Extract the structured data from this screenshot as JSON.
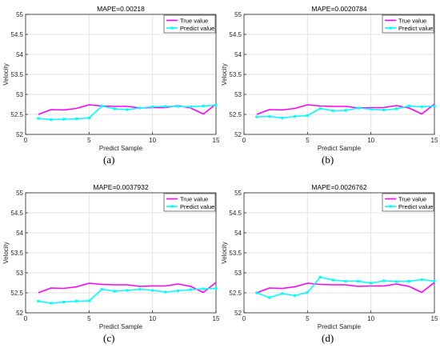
{
  "figure": {
    "panels": [
      {
        "label": "(a)"
      },
      {
        "label": "(b)"
      },
      {
        "label": "(c)"
      },
      {
        "label": "(d)"
      }
    ]
  },
  "colors": {
    "true_series": "#ff00ff",
    "predict_series": "#00ffff",
    "grid": "#e3e3e3",
    "axes": "#262626"
  },
  "chart_data": [
    {
      "type": "line",
      "title": "MAPE=0.00218",
      "xlabel": "Predict Sample",
      "ylabel": "Velocity",
      "xlim": [
        0,
        15
      ],
      "ylim": [
        52,
        55
      ],
      "xticks": [
        0,
        5,
        10,
        15
      ],
      "yticks": [
        52,
        52.5,
        53,
        53.5,
        54,
        54.5,
        55
      ],
      "ytick_labels": [
        "52",
        "52.5",
        "53",
        "53.5",
        "54",
        "54.5",
        "55"
      ],
      "grid": true,
      "legend_position": "top-right",
      "x": [
        1,
        2,
        3,
        4,
        5,
        6,
        7,
        8,
        9,
        10,
        11,
        12,
        13,
        14,
        15
      ],
      "series": [
        {
          "name": "True value",
          "marker": "none",
          "values": [
            52.5,
            52.62,
            52.61,
            52.65,
            52.74,
            52.71,
            52.7,
            52.7,
            52.66,
            52.67,
            52.67,
            52.72,
            52.66,
            52.51,
            52.76
          ]
        },
        {
          "name": "Predict value",
          "marker": "dot",
          "values": [
            52.4,
            52.37,
            52.38,
            52.39,
            52.41,
            52.71,
            52.64,
            52.62,
            52.66,
            52.69,
            52.7,
            52.7,
            52.69,
            52.71,
            52.73
          ]
        }
      ]
    },
    {
      "type": "line",
      "title": "MAPE=0.0020784",
      "xlabel": "Predict Sample",
      "ylabel": "Velocity",
      "xlim": [
        0,
        15
      ],
      "ylim": [
        52,
        55
      ],
      "xticks": [
        0,
        5,
        10,
        15
      ],
      "yticks": [
        52,
        52.5,
        53,
        53.5,
        54,
        54.5,
        55
      ],
      "ytick_labels": [
        "52",
        "52.5",
        "53",
        "53.5",
        "54",
        "54.5",
        "55"
      ],
      "grid": true,
      "legend_position": "top-right",
      "x": [
        1,
        2,
        3,
        4,
        5,
        6,
        7,
        8,
        9,
        10,
        11,
        12,
        13,
        14,
        15
      ],
      "series": [
        {
          "name": "True value",
          "marker": "none",
          "values": [
            52.5,
            52.62,
            52.61,
            52.65,
            52.74,
            52.71,
            52.7,
            52.7,
            52.66,
            52.67,
            52.67,
            52.72,
            52.66,
            52.51,
            52.76
          ]
        },
        {
          "name": "Predict value",
          "marker": "dot",
          "values": [
            52.44,
            52.45,
            52.41,
            52.45,
            52.47,
            52.65,
            52.59,
            52.6,
            52.66,
            52.63,
            52.61,
            52.64,
            52.71,
            52.69,
            52.71
          ]
        }
      ]
    },
    {
      "type": "line",
      "title": "MAPE=0.0037932",
      "xlabel": "Predict Sample",
      "ylabel": "Velocity",
      "xlim": [
        0,
        15
      ],
      "ylim": [
        52,
        55
      ],
      "xticks": [
        0,
        5,
        10,
        15
      ],
      "yticks": [
        52,
        52.5,
        53,
        53.5,
        54,
        54.5,
        55
      ],
      "ytick_labels": [
        "52",
        "52.5",
        "53",
        "53.5",
        "54",
        "54.5",
        "55"
      ],
      "grid": true,
      "legend_position": "top-right",
      "x": [
        1,
        2,
        3,
        4,
        5,
        6,
        7,
        8,
        9,
        10,
        11,
        12,
        13,
        14,
        15
      ],
      "series": [
        {
          "name": "True value",
          "marker": "none",
          "values": [
            52.5,
            52.62,
            52.61,
            52.65,
            52.74,
            52.71,
            52.7,
            52.7,
            52.66,
            52.67,
            52.67,
            52.72,
            52.66,
            52.51,
            52.76
          ]
        },
        {
          "name": "Predict value",
          "marker": "dot",
          "values": [
            52.29,
            52.24,
            52.27,
            52.29,
            52.3,
            52.59,
            52.54,
            52.56,
            52.59,
            52.56,
            52.52,
            52.55,
            52.58,
            52.6,
            52.61
          ]
        }
      ]
    },
    {
      "type": "line",
      "title": "MAPE=0.0026762",
      "xlabel": "Predict Sample",
      "ylabel": "Velocity",
      "xlim": [
        0,
        15
      ],
      "ylim": [
        52,
        55
      ],
      "xticks": [
        0,
        5,
        10,
        15
      ],
      "yticks": [
        52,
        52.5,
        53,
        53.5,
        54,
        54.5,
        55
      ],
      "ytick_labels": [
        "52",
        "52.5",
        "53",
        "53.5",
        "54",
        "54.5",
        "55"
      ],
      "grid": true,
      "legend_position": "top-right",
      "x": [
        1,
        2,
        3,
        4,
        5,
        6,
        7,
        8,
        9,
        10,
        11,
        12,
        13,
        14,
        15
      ],
      "series": [
        {
          "name": "True value",
          "marker": "none",
          "values": [
            52.5,
            52.62,
            52.61,
            52.65,
            52.74,
            52.71,
            52.7,
            52.7,
            52.66,
            52.67,
            52.67,
            52.72,
            52.66,
            52.51,
            52.76
          ]
        },
        {
          "name": "Predict value",
          "marker": "dot",
          "values": [
            52.5,
            52.38,
            52.48,
            52.43,
            52.51,
            52.89,
            52.82,
            52.79,
            52.79,
            52.74,
            52.8,
            52.78,
            52.79,
            52.83,
            52.79
          ]
        }
      ]
    }
  ]
}
